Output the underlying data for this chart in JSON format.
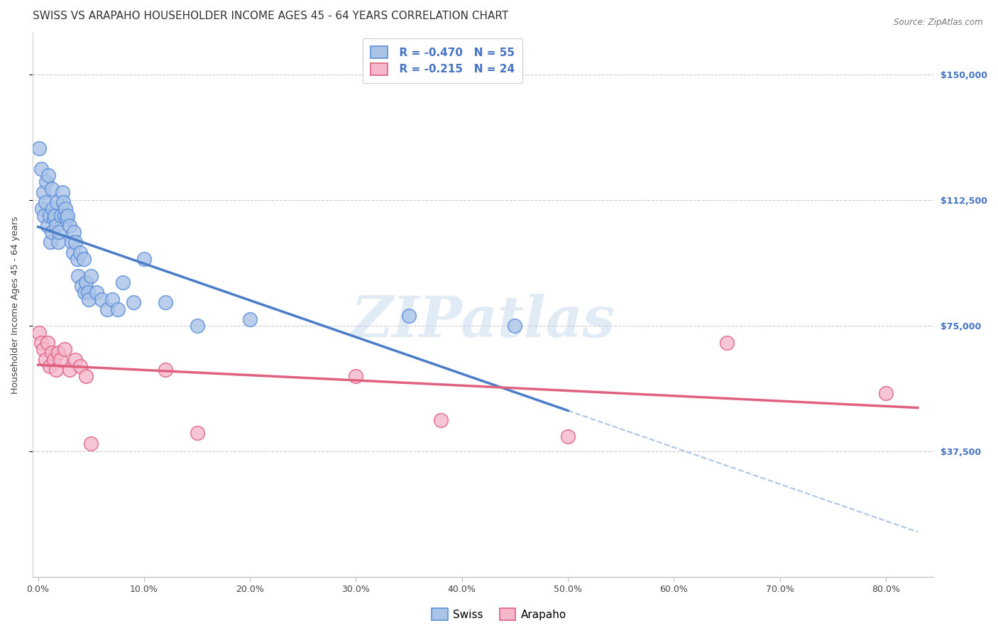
{
  "title": "SWISS VS ARAPAHO HOUSEHOLDER INCOME AGES 45 - 64 YEARS CORRELATION CHART",
  "source": "Source: ZipAtlas.com",
  "ylabel": "Householder Income Ages 45 - 64 years",
  "ylabel_ticks_labels": [
    "$37,500",
    "$75,000",
    "$112,500",
    "$150,000"
  ],
  "ylabel_ticks_values": [
    37500,
    75000,
    112500,
    150000
  ],
  "ymin": 0,
  "ymax": 162500,
  "xmin": -0.005,
  "xmax": 0.845,
  "swiss_R": -0.47,
  "swiss_N": 55,
  "arapaho_R": -0.215,
  "arapaho_N": 24,
  "swiss_color": "#aac4e8",
  "swiss_edge_color": "#5b8dd9",
  "swiss_line_color": "#4a7cc7",
  "arapaho_color": "#f5b8cc",
  "arapaho_edge_color": "#e06080",
  "arapaho_line_color": "#e06080",
  "background_color": "#ffffff",
  "grid_color": "#cccccc",
  "watermark": "ZIPatlas",
  "swiss_x": [
    0.001,
    0.003,
    0.004,
    0.005,
    0.006,
    0.007,
    0.008,
    0.009,
    0.01,
    0.011,
    0.012,
    0.013,
    0.013,
    0.014,
    0.015,
    0.016,
    0.017,
    0.018,
    0.019,
    0.02,
    0.022,
    0.023,
    0.024,
    0.025,
    0.026,
    0.027,
    0.028,
    0.03,
    0.032,
    0.033,
    0.034,
    0.035,
    0.037,
    0.038,
    0.04,
    0.041,
    0.043,
    0.044,
    0.045,
    0.047,
    0.048,
    0.05,
    0.055,
    0.06,
    0.065,
    0.07,
    0.075,
    0.08,
    0.09,
    0.1,
    0.12,
    0.15,
    0.2,
    0.35,
    0.45
  ],
  "swiss_y": [
    128000,
    122000,
    110000,
    115000,
    108000,
    112000,
    118000,
    105000,
    120000,
    108000,
    100000,
    103000,
    116000,
    110000,
    107000,
    108000,
    105000,
    112000,
    100000,
    103000,
    108000,
    115000,
    112000,
    108000,
    110000,
    107000,
    108000,
    105000,
    100000,
    97000,
    103000,
    100000,
    95000,
    90000,
    97000,
    87000,
    95000,
    85000,
    88000,
    85000,
    83000,
    90000,
    85000,
    83000,
    80000,
    83000,
    80000,
    88000,
    82000,
    95000,
    82000,
    75000,
    77000,
    78000,
    75000
  ],
  "arapaho_x": [
    0.001,
    0.003,
    0.005,
    0.007,
    0.009,
    0.011,
    0.013,
    0.015,
    0.017,
    0.019,
    0.021,
    0.025,
    0.03,
    0.035,
    0.04,
    0.045,
    0.05,
    0.12,
    0.15,
    0.3,
    0.38,
    0.5,
    0.65,
    0.8
  ],
  "arapaho_y": [
    73000,
    70000,
    68000,
    65000,
    70000,
    63000,
    67000,
    65000,
    62000,
    67000,
    65000,
    68000,
    62000,
    65000,
    63000,
    60000,
    40000,
    62000,
    43000,
    60000,
    47000,
    42000,
    70000,
    55000
  ],
  "title_fontsize": 11,
  "axis_label_fontsize": 9,
  "tick_fontsize": 9,
  "legend_fontsize": 11
}
